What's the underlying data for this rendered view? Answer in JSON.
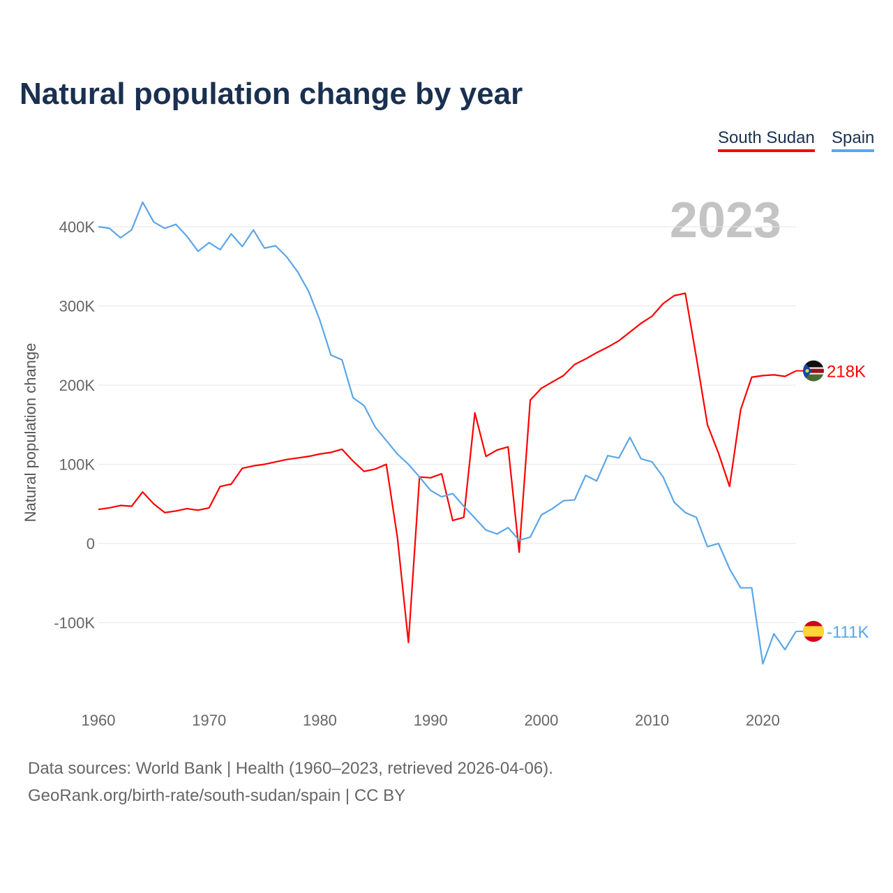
{
  "chart_data": {
    "type": "line",
    "title": "Natural population change by year",
    "xlabel": "",
    "ylabel": "Natural population change",
    "xlim": [
      1960,
      2023
    ],
    "ylim": [
      -190000,
      450000
    ],
    "grid": true,
    "legend_placement": "top-right",
    "year_watermark": "2023",
    "x_ticks": [
      "1960",
      "1970",
      "1980",
      "1990",
      "2000",
      "2010",
      "2020"
    ],
    "y_ticks": [
      {
        "v": 400000,
        "label": "400K"
      },
      {
        "v": 300000,
        "label": "300K"
      },
      {
        "v": 200000,
        "label": "200K"
      },
      {
        "v": 100000,
        "label": "100K"
      },
      {
        "v": 0,
        "label": "0"
      },
      {
        "v": -100000,
        "label": "-100K"
      }
    ],
    "x": [
      1960,
      1961,
      1962,
      1963,
      1964,
      1965,
      1966,
      1967,
      1968,
      1969,
      1970,
      1971,
      1972,
      1973,
      1974,
      1975,
      1976,
      1977,
      1978,
      1979,
      1980,
      1981,
      1982,
      1983,
      1984,
      1985,
      1986,
      1987,
      1988,
      1989,
      1990,
      1991,
      1992,
      1993,
      1994,
      1995,
      1996,
      1997,
      1998,
      1999,
      2000,
      2001,
      2002,
      2003,
      2004,
      2005,
      2006,
      2007,
      2008,
      2009,
      2010,
      2011,
      2012,
      2013,
      2014,
      2015,
      2016,
      2017,
      2018,
      2019,
      2020,
      2021,
      2022,
      2023
    ],
    "series": [
      {
        "name": "South Sudan",
        "color": "#ff0000",
        "end_label": "218K",
        "flag": "south-sudan",
        "values": [
          43,
          45,
          48,
          47,
          65,
          50,
          39,
          41,
          44,
          42,
          45,
          72,
          75,
          95,
          98,
          100,
          103,
          106,
          108,
          110,
          113,
          115,
          119,
          104,
          91,
          94,
          100,
          8,
          -125,
          84,
          83,
          88,
          29,
          33,
          165,
          110,
          118,
          122,
          -11,
          181,
          196,
          204,
          212,
          226,
          233,
          241,
          248,
          256,
          267,
          278,
          287,
          303,
          313,
          316,
          235,
          150,
          114,
          72,
          169,
          210,
          212,
          213,
          211,
          218
        ]
      },
      {
        "name": "Spain",
        "color": "#5ba6e8",
        "end_label": "-111K",
        "flag": "spain",
        "values": [
          400,
          398,
          386,
          396,
          431,
          406,
          398,
          403,
          388,
          369,
          380,
          371,
          391,
          375,
          396,
          373,
          376,
          362,
          343,
          318,
          282,
          238,
          232,
          184,
          174,
          147,
          130,
          113,
          100,
          84,
          67,
          59,
          63,
          47,
          32,
          17,
          12,
          20,
          4,
          8,
          36,
          44,
          54,
          55,
          86,
          79,
          111,
          108,
          134,
          107,
          103,
          84,
          52,
          39,
          33,
          -4,
          0,
          -32,
          -56,
          -56,
          -152,
          -114,
          -134,
          -111
        ]
      }
    ],
    "value_unit_multiplier": 1000
  },
  "footer": {
    "line1": "Data sources: World Bank | Health (1960–2023, retrieved 2026-04-06).",
    "line2": "GeoRank.org/birth-rate/south-sudan/spain | CC BY"
  }
}
